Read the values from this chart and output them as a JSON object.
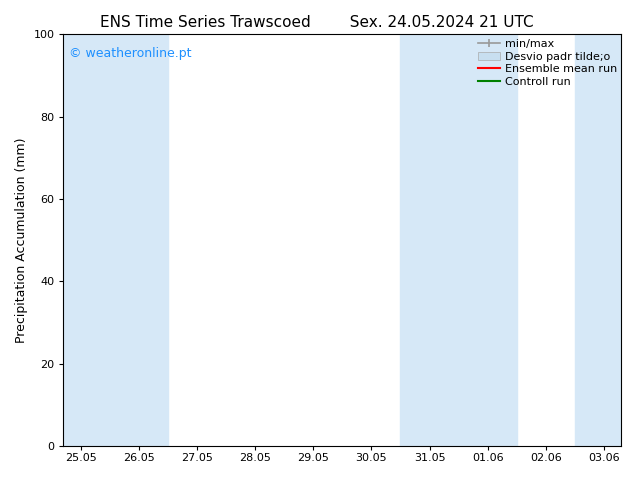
{
  "title_left": "ENS Time Series Trawscoed",
  "title_right": "Sex. 24.05.2024 21 UTC",
  "ylabel": "Precipitation Accumulation (mm)",
  "ylim": [
    0,
    100
  ],
  "yticks": [
    0,
    20,
    40,
    60,
    80,
    100
  ],
  "xtick_labels": [
    "25.05",
    "26.05",
    "27.05",
    "28.05",
    "29.05",
    "30.05",
    "31.05",
    "01.06",
    "02.06",
    "03.06"
  ],
  "watermark": "© weatheronline.pt",
  "watermark_color": "#1E90FF",
  "bg_color": "#ffffff",
  "plot_bg_color": "#ffffff",
  "shade_color": "#d6e8f7",
  "shaded_indices": [
    0,
    1,
    6,
    7,
    9
  ],
  "legend_entries": [
    {
      "label": "min/max"
    },
    {
      "label": "Desvio padr tilde;o"
    },
    {
      "label": "Ensemble mean run"
    },
    {
      "label": "Controll run"
    }
  ],
  "legend_colors": [
    "#999999",
    "#c8dff0",
    "#ff0000",
    "#008000"
  ],
  "title_fontsize": 11,
  "tick_fontsize": 8,
  "ylabel_fontsize": 9,
  "legend_fontsize": 8
}
